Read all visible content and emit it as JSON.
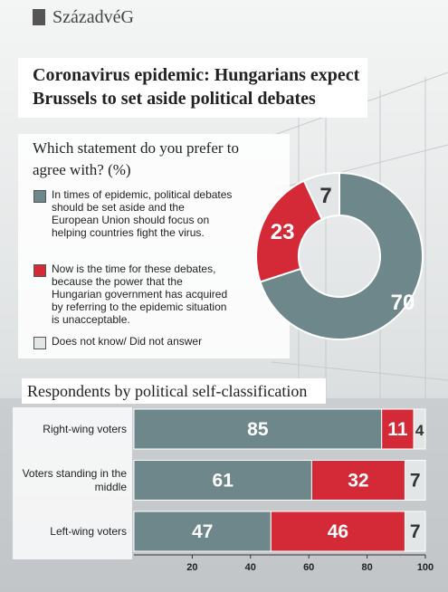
{
  "header": {
    "brand": "SzázadvéG",
    "title": "Coronavirus epidemic: Hungarians expect Brussels to set aside political debates"
  },
  "chart_data": [
    {
      "type": "pie",
      "title": "Which statement do you prefer to agree with? (%)",
      "categories": [
        "In times of epidemic, political debates should be set aside and the European Union should focus on helping countries fight the virus.",
        "Now is the time for these debates, because the power that the Hungarian government has acquired by referring to the epidemic situation is unacceptable.",
        "Does not know/ Did not answer"
      ],
      "values": [
        70,
        23,
        7
      ],
      "colors": [
        "#6d878a",
        "#d42a37",
        "#e2e6e6"
      ],
      "donut": true
    },
    {
      "type": "bar",
      "orientation": "horizontal",
      "stacked": true,
      "title": "Respondents by political self-classification",
      "categories": [
        "Right-wing voters",
        "Voters standing in the middle",
        "Left-wing voters"
      ],
      "series": [
        {
          "color": "#6d878a",
          "values": [
            85,
            61,
            47
          ]
        },
        {
          "color": "#d42a37",
          "values": [
            11,
            32,
            46
          ]
        },
        {
          "color": "#e2e6e6",
          "values": [
            4,
            7,
            7
          ]
        }
      ],
      "xlim": [
        0,
        100
      ],
      "xticks": [
        20,
        40,
        60,
        80,
        100
      ],
      "grid": false
    }
  ]
}
